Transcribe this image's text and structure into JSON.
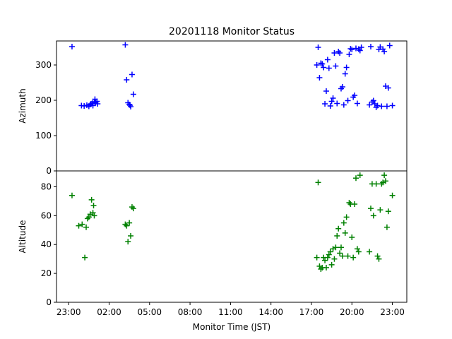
{
  "title": "20201118 Monitor Status",
  "colors": {
    "azimuth": "#0000ff",
    "altitude": "#008000",
    "axes": "#000000"
  },
  "chart_data": [
    {
      "type": "scatter",
      "panel": "top",
      "title": "20201118 Monitor Status",
      "ylabel": "Azimuth",
      "xlabel": "",
      "ylim": [
        0,
        368
      ],
      "yticks": [
        0,
        100,
        200,
        300
      ],
      "xlim": [
        -0.9,
        25.07
      ],
      "marker": "+",
      "grid": false,
      "series": [
        {
          "x": [
            0.25,
            0.95,
            1.15,
            1.35,
            1.5,
            1.6,
            1.65,
            1.75,
            1.8,
            1.9,
            1.95,
            2.0,
            2.1,
            2.15,
            4.2,
            4.3,
            4.4,
            4.5,
            4.55,
            4.6,
            4.7,
            4.8,
            18.4,
            18.5,
            18.6,
            18.7,
            18.8,
            18.9,
            19.0,
            19.1,
            19.2,
            19.3,
            19.4,
            19.5,
            19.6,
            19.7,
            19.8,
            19.9,
            20.0,
            20.1,
            20.2,
            20.3,
            20.4,
            20.5,
            20.6,
            20.7,
            20.8,
            20.9,
            21.0,
            21.1,
            21.2,
            21.3,
            21.4,
            21.5,
            21.6,
            21.7,
            22.3,
            22.4,
            22.5,
            22.6,
            22.7,
            22.8,
            22.9,
            23.0,
            23.1,
            23.2,
            23.3,
            23.4,
            23.5,
            23.6,
            23.7,
            23.8,
            24.0
          ],
          "y": [
            352,
            185,
            184,
            186,
            183,
            188,
            190,
            192,
            185,
            196,
            203,
            193,
            197,
            190,
            357,
            258,
            193,
            188,
            186,
            182,
            273,
            217,
            300,
            350,
            264,
            305,
            303,
            293,
            190,
            226,
            315,
            291,
            184,
            197,
            206,
            334,
            297,
            191,
            338,
            334,
            233,
            238,
            187,
            275,
            293,
            199,
            330,
            346,
            344,
            209,
            214,
            347,
            191,
            345,
            341,
            350,
            187,
            352,
            195,
            199,
            190,
            180,
            185,
            344,
            351,
            183,
            345,
            338,
            240,
            183,
            235,
            355,
            185
          ],
          "color": "#0000ff"
        }
      ]
    },
    {
      "type": "scatter",
      "panel": "bottom",
      "ylabel": "Altitude",
      "xlabel": "Monitor Time (JST)",
      "ylim": [
        0,
        91
      ],
      "yticks": [
        0,
        20,
        40,
        60,
        80
      ],
      "xlim": [
        -0.9,
        25.07
      ],
      "xticks": [
        "23:00",
        "02:00",
        "05:00",
        "08:00",
        "11:00",
        "14:00",
        "17:00",
        "20:00",
        "23:00"
      ],
      "xtick_values": [
        0,
        3,
        6,
        9,
        12,
        15,
        18,
        21,
        24
      ],
      "marker": "+",
      "grid": false,
      "series": [
        {
          "x": [
            0.25,
            0.75,
            1.0,
            1.2,
            1.3,
            1.4,
            1.5,
            1.6,
            1.7,
            1.8,
            1.85,
            1.9,
            4.2,
            4.3,
            4.4,
            4.5,
            4.6,
            4.7,
            4.8,
            18.4,
            18.5,
            18.6,
            18.7,
            18.8,
            18.9,
            19.0,
            19.1,
            19.2,
            19.3,
            19.4,
            19.5,
            19.6,
            19.7,
            19.8,
            19.9,
            20.0,
            20.1,
            20.2,
            20.3,
            20.4,
            20.5,
            20.6,
            20.7,
            20.8,
            20.9,
            21.0,
            21.1,
            21.2,
            21.3,
            21.4,
            21.5,
            21.6,
            22.3,
            22.4,
            22.5,
            22.6,
            22.8,
            22.9,
            23.0,
            23.1,
            23.2,
            23.3,
            23.4,
            23.5,
            23.6,
            23.7,
            24.0
          ],
          "y": [
            74,
            53,
            54,
            31,
            52,
            58,
            59,
            61,
            71,
            62,
            67,
            60,
            54,
            53,
            42,
            55,
            46,
            66,
            65,
            31,
            83,
            25,
            23,
            24,
            31,
            29,
            24,
            31,
            33,
            35,
            26,
            37,
            30,
            38,
            46,
            51,
            34,
            38,
            32,
            55,
            48,
            59,
            32,
            69,
            68,
            45,
            31,
            68,
            86,
            37,
            35,
            88,
            35,
            65,
            82,
            60,
            82,
            32,
            30,
            64,
            82,
            83,
            88,
            84,
            52,
            63,
            74
          ],
          "color": "#008000"
        }
      ]
    }
  ]
}
